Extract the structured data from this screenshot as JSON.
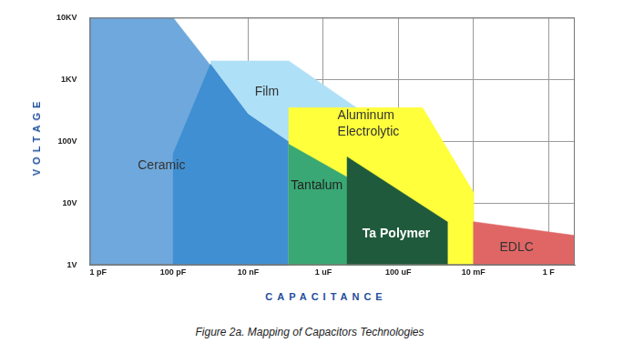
{
  "chart_data": {
    "type": "area",
    "caption": "Figure 2a. Mapping of Capacitors Technologies",
    "x_label": "CAPACITANCE",
    "y_label": "VOLTAGE",
    "log": true,
    "grid": true,
    "xlim": [
      6e-13,
      5
    ],
    "ylim": [
      1,
      10000
    ],
    "xticks": [
      {
        "value": 1e-12,
        "label": "1 pF"
      },
      {
        "value": 1e-10,
        "label": "100 pF"
      },
      {
        "value": 1e-08,
        "label": "10 nF"
      },
      {
        "value": 1e-06,
        "label": "1 uF"
      },
      {
        "value": 0.0001,
        "label": "100 uF"
      },
      {
        "value": 0.01,
        "label": "10 mF"
      },
      {
        "value": 1,
        "label": "1 F"
      }
    ],
    "yticks": [
      {
        "value": 1,
        "label": "1V"
      },
      {
        "value": 10,
        "label": "10V"
      },
      {
        "value": 100,
        "label": "100V"
      },
      {
        "value": 1000,
        "label": "1KV"
      },
      {
        "value": 10000,
        "label": "10KV"
      }
    ],
    "series": [
      {
        "name": "Ceramic",
        "colors": [
          "#6fa8dc",
          "#3f8fd2"
        ],
        "polygons": [
          [
            [
              6e-13,
              1
            ],
            [
              6e-13,
              10000
            ],
            [
              1e-10,
              10000
            ],
            [
              1e-08,
              280
            ],
            [
              1e-08,
              1
            ]
          ],
          [
            [
              1e-10,
              1
            ],
            [
              1e-10,
              63
            ],
            [
              1e-09,
              1800
            ],
            [
              1e-08,
              280
            ],
            [
              1.2e-07,
              100
            ],
            [
              0.00058,
              5
            ],
            [
              0.00058,
              1
            ]
          ]
        ]
      },
      {
        "name": "Film",
        "color": "#aee0f7",
        "polygons": [
          [
            [
              1e-09,
              1800
            ],
            [
              1e-09,
              2000
            ],
            [
              1.2e-07,
              2000
            ],
            [
              0.00015,
              100
            ],
            [
              1.2e-07,
              100
            ],
            [
              1e-08,
              280
            ]
          ]
        ]
      },
      {
        "name": "Aluminum Electrolytic",
        "color": "#ffff3c",
        "polygons": [
          [
            [
              1.2e-07,
              1
            ],
            [
              1.2e-07,
              350
            ],
            [
              0.00044,
              350
            ],
            [
              0.01,
              15
            ],
            [
              0.01,
              1
            ]
          ]
        ]
      },
      {
        "name": "Tantalum",
        "color": "#3aa874",
        "polygons": [
          [
            [
              1.2e-07,
              1
            ],
            [
              1.2e-07,
              90
            ],
            [
              5e-06,
              25
            ],
            [
              0.00058,
              5
            ],
            [
              0.00058,
              1
            ]
          ]
        ]
      },
      {
        "name": "Ta Polymer",
        "color": "#1f5a3c",
        "polygons": [
          [
            [
              4.3e-06,
              1
            ],
            [
              4.3e-06,
              56
            ],
            [
              0.002,
              5
            ],
            [
              0.002,
              1
            ]
          ]
        ]
      },
      {
        "name": "EDLC",
        "color": "#e06666",
        "polygons": [
          [
            [
              0.01,
              1
            ],
            [
              0.01,
              5
            ],
            [
              5,
              3
            ],
            [
              5,
              1
            ]
          ]
        ]
      }
    ]
  }
}
